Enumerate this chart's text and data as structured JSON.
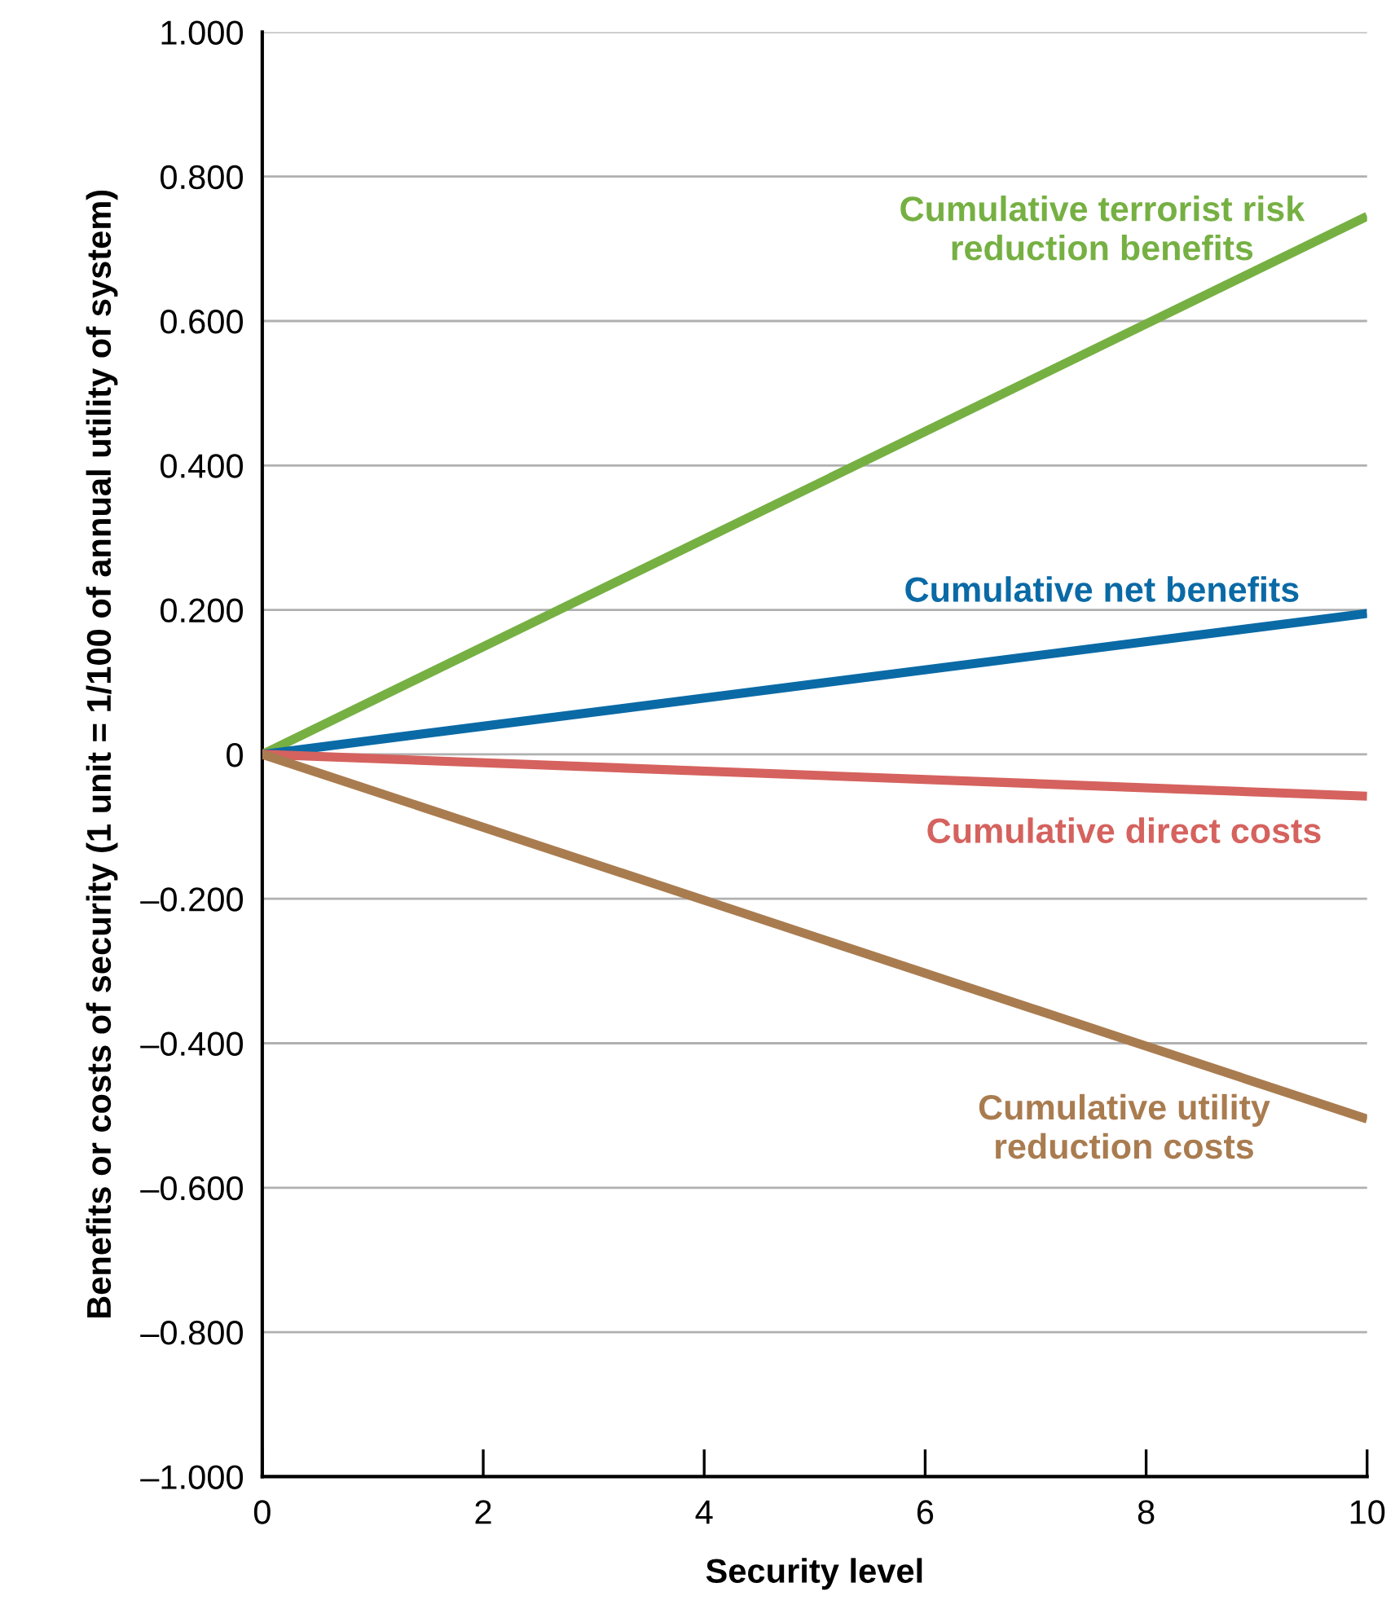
{
  "chart_data": {
    "type": "line",
    "xlabel": "Security level",
    "ylabel": "Benefits or costs of security (1 unit = 1/100 of annual utility of system)",
    "x": [
      0,
      10
    ],
    "series": [
      {
        "name": "Cumulative terrorist risk\nreduction benefits",
        "color": "#76b043",
        "values": [
          0,
          0.745
        ]
      },
      {
        "name": "Cumulative net benefits",
        "color": "#0a6aa6",
        "values": [
          0,
          0.195
        ]
      },
      {
        "name": "Cumulative direct costs",
        "color": "#d5625e",
        "values": [
          0,
          -0.058
        ]
      },
      {
        "name": "Cumulative utility\nreduction costs",
        "color": "#a97c50",
        "values": [
          0,
          -0.505
        ]
      }
    ],
    "xlim": [
      0,
      10
    ],
    "xticks": [
      0,
      2,
      4,
      6,
      8,
      10
    ],
    "ylim": [
      -1,
      1
    ],
    "yticks": [
      {
        "value": -1,
        "label": "–1.000"
      },
      {
        "value": -0.8,
        "label": "–0.800"
      },
      {
        "value": -0.6,
        "label": "–0.600"
      },
      {
        "value": -0.4,
        "label": "–0.400"
      },
      {
        "value": -0.2,
        "label": "–0.200"
      },
      0,
      {
        "value": 0.2,
        "label": "0.200"
      },
      {
        "value": 0.4,
        "label": "0.400"
      },
      {
        "value": 0.6,
        "label": "0.600"
      },
      {
        "value": 0.8,
        "label": "0.800"
      },
      {
        "value": 1,
        "label": "1.000"
      }
    ],
    "grid": "y",
    "legend": false,
    "marker": "none",
    "line_style": "solid"
  }
}
